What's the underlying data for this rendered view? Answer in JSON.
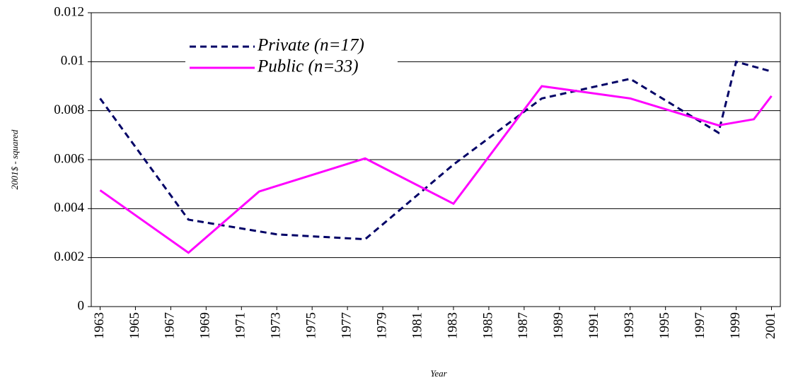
{
  "chart_data": {
    "type": "line",
    "xlabel": "Year",
    "ylabel": "2001$ - squared",
    "xlim": [
      1962.5,
      2001.5
    ],
    "xticks": [
      1963,
      1965,
      1967,
      1969,
      1971,
      1973,
      1975,
      1977,
      1979,
      1981,
      1983,
      1985,
      1987,
      1989,
      1991,
      1993,
      1995,
      1997,
      1999,
      2001
    ],
    "ylim": [
      0,
      0.012
    ],
    "yticks": [
      0,
      0.002,
      0.004,
      0.006,
      0.008,
      0.01,
      0.012
    ],
    "grid": true,
    "legend": "upper-left",
    "series": [
      {
        "name": "Private (n=17)",
        "color": "#000066",
        "dash": true,
        "x": [
          1963,
          1968,
          1973,
          1978,
          1983,
          1988,
          1993,
          1998,
          1999,
          2001
        ],
        "values": [
          0.0085,
          0.00355,
          0.00295,
          0.00275,
          0.0058,
          0.0085,
          0.0093,
          0.0071,
          0.01,
          0.0096
        ]
      },
      {
        "name": "Public (n=33)",
        "color": "#ff00ff",
        "dash": false,
        "x": [
          1963,
          1968,
          1972,
          1978,
          1983,
          1988,
          1993,
          1998,
          2000,
          2001
        ],
        "values": [
          0.00475,
          0.0022,
          0.0047,
          0.00605,
          0.0042,
          0.009,
          0.0085,
          0.0074,
          0.00765,
          0.0086
        ]
      }
    ]
  }
}
